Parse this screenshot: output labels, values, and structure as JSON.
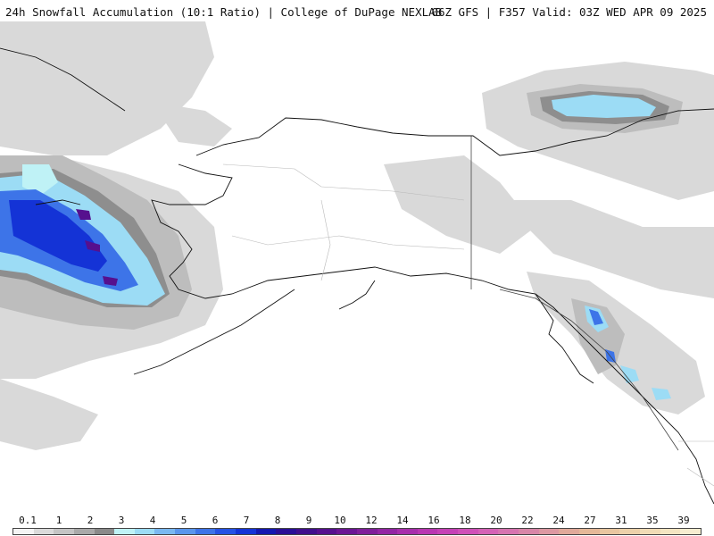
{
  "header": {
    "title_left": "24h Snowfall Accumulation (10:1 Ratio) | College of DuPage NEXLAB",
    "title_right": "06Z GFS | F357 Valid: 03Z WED APR 09 2025"
  },
  "map": {
    "region-icon": "alaska-map"
  },
  "legend": {
    "tick_labels": [
      "0.1",
      "1",
      "2",
      "3",
      "4",
      "5",
      "6",
      "7",
      "8",
      "9",
      "10",
      "12",
      "14",
      "16",
      "18",
      "20",
      "22",
      "24",
      "27",
      "31",
      "35",
      "39"
    ],
    "colors": [
      "#f4f4f4",
      "#dadada",
      "#c4c4c4",
      "#a9a9a9",
      "#8a8a8a",
      "#bff2f6",
      "#9cdcf5",
      "#7ab8f0",
      "#5a96ec",
      "#3d74e8",
      "#2552e4",
      "#1433d6",
      "#1418b0",
      "#2a0f96",
      "#400f8c",
      "#56108e",
      "#6b1594",
      "#7f1e9a",
      "#9325a4",
      "#a72eac",
      "#b936b2",
      "#c541b6",
      "#cf50b8",
      "#d462b6",
      "#d674b0",
      "#d886a8",
      "#dc98a2",
      "#e0a99a",
      "#e4b898",
      "#e8c6a0",
      "#ecd1aa",
      "#f0dcb6",
      "#f3e5c2",
      "#f6edd0"
    ]
  }
}
